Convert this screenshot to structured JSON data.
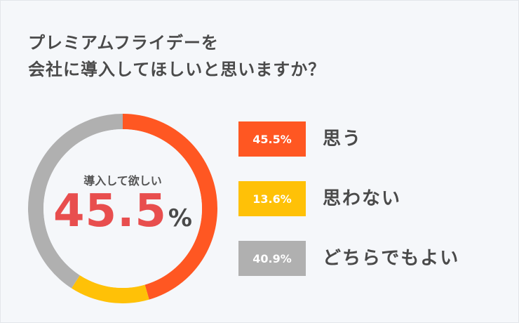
{
  "title": {
    "line1": "プレミアムフライデーを",
    "line2": "会社に導入してほしいと思いますか？"
  },
  "center": {
    "label": "導入して欲しい",
    "value": "45.5",
    "unit": "%"
  },
  "colors": {
    "yes": "#ff5722",
    "no": "#ffc107",
    "neutral": "#b0b0b0"
  },
  "chart_data": {
    "type": "pie",
    "variant": "donut",
    "title": "プレミアムフライデーを会社に導入してほしいと思いますか？",
    "categories": [
      "思う",
      "思わない",
      "どちらでもよい"
    ],
    "values": [
      45.5,
      13.6,
      40.9
    ],
    "unit": "%",
    "value_labels": [
      "45.5%",
      "13.6%",
      "40.9%"
    ],
    "colors": [
      "#ff5722",
      "#ffc107",
      "#b0b0b0"
    ],
    "legend_position": "right"
  }
}
